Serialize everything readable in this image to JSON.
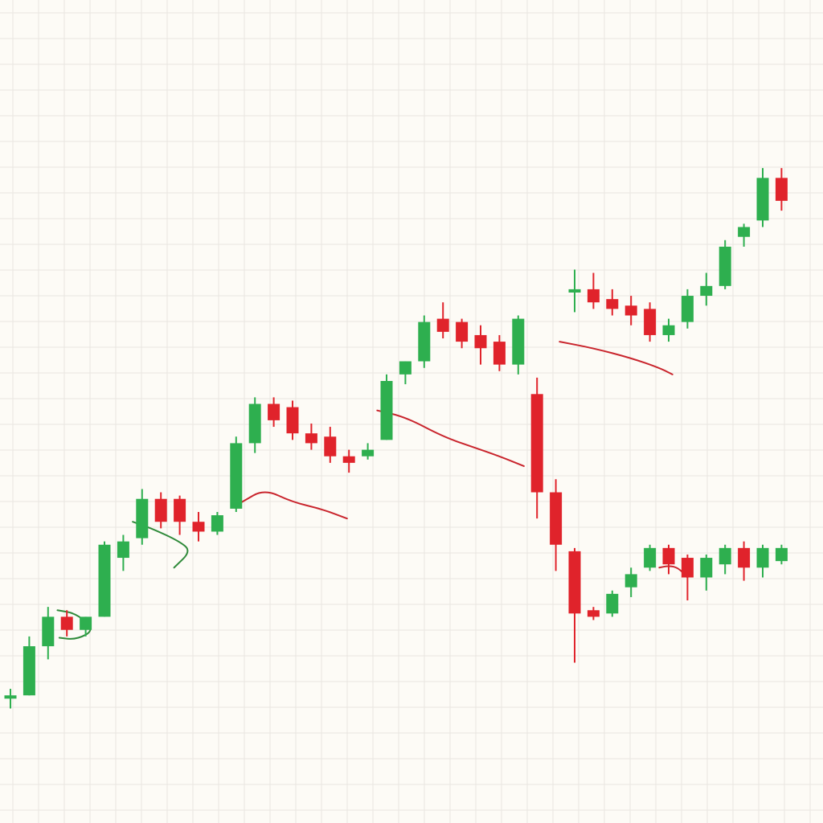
{
  "chart_data": {
    "type": "candlestick",
    "title": "",
    "xlabel": "",
    "ylabel": "",
    "grid": true,
    "legend": "none",
    "ylim": [
      0,
      100
    ],
    "colors": {
      "background": "#fdfbf6",
      "grid": "#e9e6e0",
      "up": "#2eaf4f",
      "down": "#e0232b",
      "trend_up": "#2f8a3a",
      "trend_down": "#c9252d"
    },
    "series": [
      {
        "candles": [
          {
            "x": 1,
            "open": 11.5,
            "high": 13.0,
            "low": 10.0,
            "close": 12.0
          },
          {
            "x": 2,
            "open": 12.0,
            "high": 21.0,
            "low": 12.0,
            "close": 19.5
          },
          {
            "x": 3,
            "open": 19.5,
            "high": 25.5,
            "low": 17.5,
            "close": 24.0
          },
          {
            "x": 4,
            "open": 24.0,
            "high": 25.0,
            "low": 21.0,
            "close": 22.0
          },
          {
            "x": 5,
            "open": 22.0,
            "high": 24.0,
            "low": 21.0,
            "close": 24.0
          },
          {
            "x": 6,
            "open": 24.0,
            "high": 35.5,
            "low": 24.0,
            "close": 35.0
          },
          {
            "x": 7,
            "open": 33.0,
            "high": 36.5,
            "low": 31.0,
            "close": 35.5
          },
          {
            "x": 8,
            "open": 36.0,
            "high": 43.5,
            "low": 35.0,
            "close": 42.0
          },
          {
            "x": 9,
            "open": 42.0,
            "high": 43.0,
            "low": 37.5,
            "close": 38.5
          },
          {
            "x": 10,
            "open": 42.0,
            "high": 42.5,
            "low": 36.5,
            "close": 38.5
          },
          {
            "x": 11,
            "open": 38.5,
            "high": 40.0,
            "low": 35.5,
            "close": 37.0
          },
          {
            "x": 12,
            "open": 37.0,
            "high": 40.0,
            "low": 36.5,
            "close": 39.5
          },
          {
            "x": 13,
            "open": 40.5,
            "high": 51.5,
            "low": 40.0,
            "close": 50.5
          },
          {
            "x": 14,
            "open": 50.5,
            "high": 57.5,
            "low": 49.0,
            "close": 56.5
          },
          {
            "x": 15,
            "open": 56.5,
            "high": 57.5,
            "low": 53.0,
            "close": 54.0
          },
          {
            "x": 16,
            "open": 56.0,
            "high": 57.0,
            "low": 51.0,
            "close": 52.0
          },
          {
            "x": 17,
            "open": 52.0,
            "high": 53.5,
            "low": 49.5,
            "close": 50.5
          },
          {
            "x": 18,
            "open": 51.5,
            "high": 53.0,
            "low": 47.5,
            "close": 48.5
          },
          {
            "x": 19,
            "open": 48.5,
            "high": 49.5,
            "low": 46.0,
            "close": 47.5
          },
          {
            "x": 20,
            "open": 48.5,
            "high": 50.5,
            "low": 48.0,
            "close": 49.5
          },
          {
            "x": 21,
            "open": 51.0,
            "high": 61.0,
            "low": 51.0,
            "close": 60.0
          },
          {
            "x": 22,
            "open": 61.0,
            "high": 63.0,
            "low": 59.5,
            "close": 63.0
          },
          {
            "x": 23,
            "open": 63.0,
            "high": 70.0,
            "low": 62.0,
            "close": 69.0
          },
          {
            "x": 24,
            "open": 69.5,
            "high": 72.0,
            "low": 66.5,
            "close": 67.5
          },
          {
            "x": 25,
            "open": 69.0,
            "high": 69.5,
            "low": 65.0,
            "close": 66.0
          },
          {
            "x": 26,
            "open": 67.0,
            "high": 68.5,
            "low": 62.5,
            "close": 65.0
          },
          {
            "x": 27,
            "open": 66.0,
            "high": 67.0,
            "low": 61.5,
            "close": 62.5
          },
          {
            "x": 28,
            "open": 62.5,
            "high": 70.0,
            "low": 61.0,
            "close": 69.5
          },
          {
            "x": 29,
            "open": 58.0,
            "high": 60.5,
            "low": 39.0,
            "close": 43.0
          },
          {
            "x": 30,
            "open": 43.0,
            "high": 45.0,
            "low": 31.0,
            "close": 35.0
          },
          {
            "x": 31,
            "open": 34.0,
            "high": 34.5,
            "low": 17.0,
            "close": 24.5
          },
          {
            "x": 32,
            "open": 25.0,
            "high": 25.5,
            "low": 23.5,
            "close": 24.0
          },
          {
            "x": 33,
            "open": 24.5,
            "high": 28.0,
            "low": 24.0,
            "close": 27.5
          },
          {
            "x": 34,
            "open": 28.5,
            "high": 31.5,
            "low": 27.0,
            "close": 30.5
          },
          {
            "x": 35,
            "open": 31.5,
            "high": 35.0,
            "low": 31.0,
            "close": 34.5
          },
          {
            "x": 36,
            "open": 34.5,
            "high": 35.0,
            "low": 30.5,
            "close": 32.0
          },
          {
            "x": 37,
            "open": 33.0,
            "high": 33.5,
            "low": 26.5,
            "close": 30.0
          },
          {
            "x": 38,
            "open": 30.0,
            "high": 33.5,
            "low": 28.0,
            "close": 33.0
          },
          {
            "x": 39,
            "open": 32.0,
            "high": 35.0,
            "low": 30.5,
            "close": 34.5
          },
          {
            "x": 40,
            "open": 34.5,
            "high": 35.5,
            "low": 29.5,
            "close": 31.5
          },
          {
            "x": 41,
            "open": 31.5,
            "high": 35.0,
            "low": 30.0,
            "close": 34.5
          },
          {
            "x": 42,
            "open": 32.5,
            "high": 35.0,
            "low": 32.0,
            "close": 34.5
          }
        ]
      },
      {
        "candles": [
          {
            "x": 31,
            "open": 73.5,
            "high": 77.0,
            "low": 70.5,
            "close": 74.0
          },
          {
            "x": 32,
            "open": 74.0,
            "high": 76.5,
            "low": 71.0,
            "close": 72.0
          },
          {
            "x": 33,
            "open": 72.5,
            "high": 74.0,
            "low": 70.0,
            "close": 71.0
          },
          {
            "x": 34,
            "open": 71.5,
            "high": 73.0,
            "low": 68.5,
            "close": 70.0
          },
          {
            "x": 35,
            "open": 71.0,
            "high": 72.0,
            "low": 66.0,
            "close": 67.0
          },
          {
            "x": 36,
            "open": 67.0,
            "high": 69.5,
            "low": 66.0,
            "close": 68.5
          },
          {
            "x": 37,
            "open": 69.0,
            "high": 74.0,
            "low": 68.0,
            "close": 73.0
          },
          {
            "x": 38,
            "open": 73.0,
            "high": 76.5,
            "low": 71.5,
            "close": 74.5
          },
          {
            "x": 39,
            "open": 74.5,
            "high": 81.5,
            "low": 74.0,
            "close": 80.5
          },
          {
            "x": 40,
            "open": 82.0,
            "high": 84.0,
            "low": 80.5,
            "close": 83.5
          },
          {
            "x": 41,
            "open": 84.5,
            "high": 92.5,
            "low": 83.5,
            "close": 91.0
          },
          {
            "x": 42,
            "open": 91.0,
            "high": 92.5,
            "low": 86.0,
            "close": 87.5
          }
        ]
      }
    ],
    "trend_arcs": [
      {
        "color": "#2f8a3a",
        "points": [
          [
            3.5,
            25.0
          ],
          [
            4.5,
            24.5
          ],
          [
            5.5,
            22.0
          ],
          [
            4.5,
            20.5
          ],
          [
            3.6,
            20.8
          ]
        ]
      },
      {
        "color": "#2f8a3a",
        "points": [
          [
            7.5,
            38.5
          ],
          [
            8.5,
            37.5
          ],
          [
            10.0,
            35.5
          ],
          [
            10.6,
            34.0
          ],
          [
            9.7,
            31.5
          ]
        ]
      },
      {
        "color": "#c9252d",
        "points": [
          [
            13.3,
            41.5
          ],
          [
            14.5,
            43.5
          ],
          [
            16.0,
            41.5
          ],
          [
            17.5,
            40.5
          ],
          [
            18.9,
            39.0
          ]
        ]
      },
      {
        "color": "#c9252d",
        "points": [
          [
            20.5,
            55.5
          ],
          [
            22.0,
            54.5
          ],
          [
            24.0,
            51.5
          ],
          [
            25.5,
            50.0
          ],
          [
            27.0,
            48.5
          ],
          [
            28.3,
            47.0
          ]
        ]
      },
      {
        "color": "#c9252d",
        "points": [
          [
            30.2,
            66.0
          ],
          [
            32.0,
            65.0
          ],
          [
            34.0,
            63.5
          ],
          [
            35.5,
            62.0
          ],
          [
            36.2,
            61.0
          ]
        ]
      },
      {
        "color": "#c9252d",
        "points": [
          [
            35.5,
            31.5
          ],
          [
            36.0,
            31.8
          ],
          [
            36.5,
            31.5
          ],
          [
            37.0,
            30.0
          ]
        ]
      }
    ]
  }
}
